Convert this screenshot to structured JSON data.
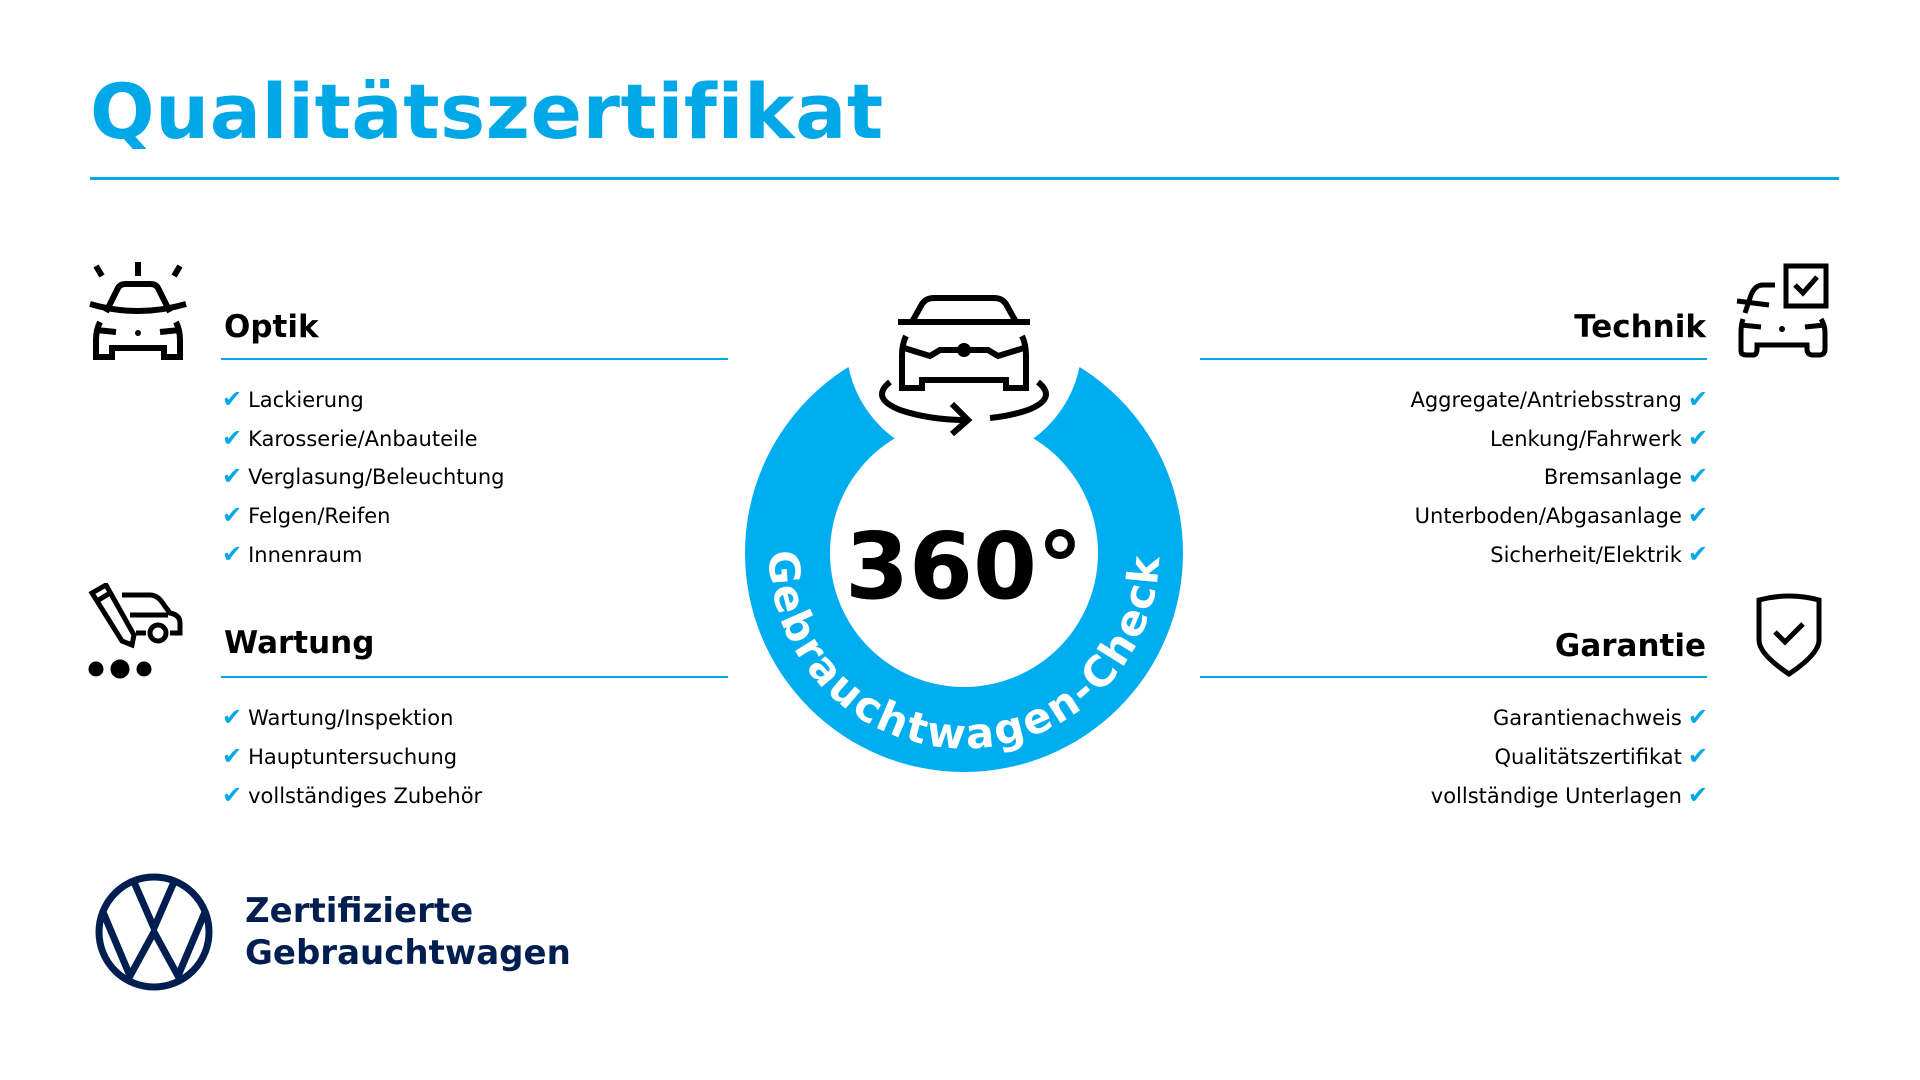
{
  "title": "Qualitätszertifikat",
  "colors": {
    "accent": "#00a8e8",
    "brand_navy": "#001e50",
    "text": "#000000"
  },
  "check_icon": "✔",
  "sections": {
    "optik": {
      "heading": "Optik",
      "icon": "car-front-lights-icon",
      "items": [
        "Lackierung",
        "Karosserie/Anbauteile",
        "Verglasung/Beleuchtung",
        "Felgen/Reifen",
        "Innenraum"
      ]
    },
    "wartung": {
      "heading": "Wartung",
      "icon": "service-pencil-van-icon",
      "items": [
        "Wartung/Inspektion",
        "Hauptuntersuchung",
        "vollständiges Zubehör"
      ]
    },
    "technik": {
      "heading": "Technik",
      "icon": "car-checkbox-icon",
      "items": [
        "Aggregate/Antriebsstrang",
        "Lenkung/Fahrwerk",
        "Bremsanlage",
        "Unterboden/Abgasanlage",
        "Sicherheit/Elektrik"
      ]
    },
    "garantie": {
      "heading": "Garantie",
      "icon": "shield-check-icon",
      "items": [
        "Garantienachweis",
        "Qualitätszertifikat",
        "vollständige Unterlagen"
      ]
    }
  },
  "badge": {
    "degrees": "360°",
    "arc_text": "Gebrauchtwagen-Check",
    "icon": "car-rotate-icon"
  },
  "brand": {
    "line1": "Zertifizierte",
    "line2": "Gebrauchtwagen",
    "logo": "vw-logo"
  }
}
